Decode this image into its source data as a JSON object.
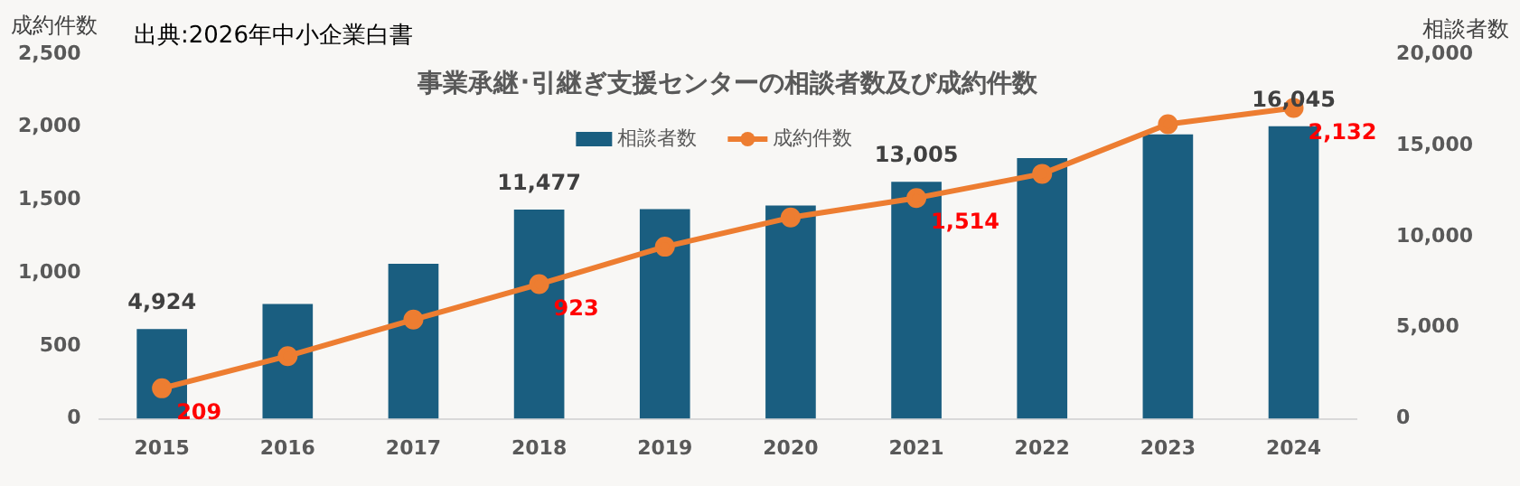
{
  "chart_data": {
    "type": "bar",
    "title": "事業承継･引継ぎ支援センターの相談者数及び成約件数",
    "ylabel": "成約件数",
    "y2label": "相談者数",
    "annotations": [
      "出典:2026年中小企業白書"
    ],
    "categories": [
      "2015",
      "2016",
      "2017",
      "2018",
      "2019",
      "2020",
      "2021",
      "2022",
      "2023",
      "2024"
    ],
    "series": [
      {
        "name": "相談者数",
        "axis": "y2",
        "color": "#1a5e80",
        "values": [
          4924,
          6300,
          8500,
          11477,
          11500,
          11700,
          13005,
          14300,
          15600,
          16045
        ],
        "value_labels": [
          "4,924",
          null,
          null,
          "11,477",
          null,
          null,
          "13,005",
          null,
          null,
          "16,045"
        ]
      },
      {
        "name": "成約件数",
        "type": "line",
        "color": "#ed7d31",
        "marker": "circle",
        "values": [
          209,
          430,
          680,
          923,
          1180,
          1380,
          1514,
          1680,
          2020,
          2132
        ],
        "value_labels": [
          "209",
          null,
          null,
          "923",
          null,
          null,
          "1,514",
          null,
          null,
          "2,132"
        ]
      }
    ],
    "ylim": [
      0,
      2500
    ],
    "yticks": [
      0,
      500,
      {
        "value": 1000,
        "label": "1,000"
      },
      {
        "value": 1500,
        "label": "1,500"
      },
      {
        "value": 2000,
        "label": "2,000"
      },
      {
        "value": 2500,
        "label": "2,500"
      }
    ],
    "y2lim": [
      0,
      20000
    ],
    "y2ticks": [
      0,
      {
        "value": 5000,
        "label": "5,000"
      },
      {
        "value": 10000,
        "label": "10,000"
      },
      {
        "value": 15000,
        "label": "15,000"
      },
      {
        "value": 20000,
        "label": "20,000"
      }
    ],
    "grid": false,
    "legend": "top"
  }
}
